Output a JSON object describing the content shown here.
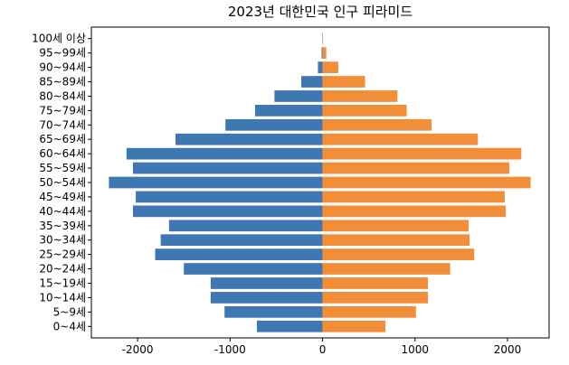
{
  "chart_data": {
    "type": "bar",
    "orientation": "horizontal",
    "title": "2023년 대한민국 인구 피라미드",
    "xlabel": "",
    "ylabel": "",
    "xlim": [
      -2500,
      2450
    ],
    "xticks": [
      -2000,
      -1000,
      0,
      1000,
      2000
    ],
    "xtick_labels": [
      "-2000",
      "-1000",
      "0",
      "1000",
      "2000"
    ],
    "grid": false,
    "legend": "none",
    "categories": [
      "0~4세",
      "5~9세",
      "10~14세",
      "15~19세",
      "20~24세",
      "25~29세",
      "30~34세",
      "35~39세",
      "40~44세",
      "45~49세",
      "50~54세",
      "55~59세",
      "60~64세",
      "65~69세",
      "70~74세",
      "75~79세",
      "80~84세",
      "85~89세",
      "90~94세",
      "95~99세",
      "100세 이상"
    ],
    "series": [
      {
        "color": "#3f77b3",
        "values": [
          -710,
          -1060,
          -1210,
          -1210,
          -1500,
          -1810,
          -1750,
          -1660,
          -2050,
          -2020,
          -2310,
          -2050,
          -2120,
          -1590,
          -1050,
          -730,
          -520,
          -230,
          -50,
          -10,
          -2
        ]
      },
      {
        "color": "#f28e38",
        "values": [
          680,
          1010,
          1140,
          1140,
          1380,
          1640,
          1590,
          1580,
          1980,
          1970,
          2250,
          2020,
          2150,
          1680,
          1180,
          910,
          810,
          460,
          170,
          40,
          5
        ]
      }
    ]
  }
}
